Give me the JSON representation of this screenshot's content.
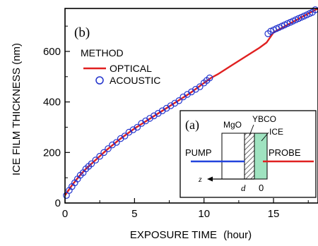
{
  "chart_data": {
    "type": "scatter",
    "panel_label": "(b)",
    "xlabel": "EXPOSURE TIME",
    "xunit": "(hour)",
    "ylabel": "ICE FILM THICKNESS (nm)",
    "xlim": [
      0,
      18.2
    ],
    "ylim": [
      0,
      770
    ],
    "xticks": [
      0,
      5,
      10,
      15
    ],
    "yticks": [
      0,
      200,
      400,
      600
    ],
    "grid": false,
    "legend": {
      "title": "METHOD",
      "placement": "top-left",
      "entries": [
        "OPTICAL",
        "ACOUSTIC"
      ]
    },
    "series": [
      {
        "name": "OPTICAL",
        "kind": "line",
        "color": "#e02020",
        "x": [
          0.0,
          0.5,
          1.0,
          1.5,
          2.0,
          3.0,
          4.0,
          5.0,
          6.0,
          7.0,
          8.0,
          9.0,
          10.0,
          10.5,
          11.0,
          12.0,
          13.0,
          14.0,
          14.5,
          15.0,
          16.0,
          17.0,
          18.2
        ],
        "y": [
          30,
          70,
          105,
          135,
          160,
          210,
          255,
          295,
          330,
          365,
          400,
          435,
          475,
          495,
          510,
          545,
          580,
          615,
          635,
          675,
          705,
          735,
          770
        ]
      },
      {
        "name": "ACOUSTIC",
        "kind": "scatter",
        "color": "#2233cc",
        "x": [
          0.1,
          0.3,
          0.5,
          0.7,
          0.9,
          1.1,
          1.3,
          1.5,
          1.7,
          1.9,
          2.2,
          2.5,
          2.8,
          3.1,
          3.4,
          3.7,
          4.0,
          4.3,
          4.6,
          4.9,
          5.2,
          5.5,
          5.8,
          6.1,
          6.4,
          6.7,
          7.0,
          7.3,
          7.6,
          7.9,
          8.2,
          8.5,
          8.8,
          9.1,
          9.4,
          9.7,
          10.0,
          10.2,
          10.4,
          14.6,
          14.8,
          15.0,
          15.2,
          15.4,
          15.6,
          15.8,
          16.0,
          16.2,
          16.4,
          16.6,
          16.8,
          17.0,
          17.2,
          17.4,
          17.6,
          17.8,
          18.0
        ],
        "y": [
          30,
          50,
          65,
          80,
          95,
          110,
          120,
          135,
          145,
          155,
          170,
          185,
          200,
          215,
          230,
          240,
          255,
          265,
          280,
          290,
          300,
          315,
          325,
          335,
          345,
          355,
          365,
          375,
          385,
          395,
          405,
          420,
          430,
          440,
          450,
          460,
          475,
          485,
          495,
          670,
          680,
          685,
          690,
          695,
          700,
          705,
          710,
          715,
          720,
          725,
          730,
          735,
          740,
          745,
          750,
          755,
          765
        ]
      }
    ],
    "inset": {
      "label": "(a)",
      "layer_labels": [
        "MgO",
        "YBCO",
        "ICE"
      ],
      "beam_labels": [
        "PUMP",
        "PROBE"
      ],
      "axis_label": "z",
      "marks": [
        "d",
        "0"
      ],
      "colors": {
        "pump": "#2244dd",
        "probe": "#e02020",
        "ice": "#9fe3c0",
        "ybco_hatch": "#333333"
      }
    }
  }
}
